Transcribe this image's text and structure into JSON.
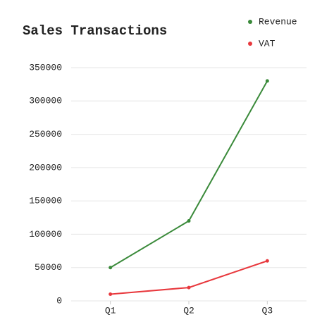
{
  "chart_data": {
    "type": "line",
    "title": "Sales Transactions",
    "categories": [
      "Q1",
      "Q2",
      "Q3"
    ],
    "series": [
      {
        "name": "Revenue",
        "color": "#3a8a3a",
        "values": [
          50000,
          120000,
          330000
        ]
      },
      {
        "name": "VAT",
        "color": "#e8383d",
        "values": [
          10000,
          20000,
          60000
        ]
      }
    ],
    "ylim": [
      0,
      350000
    ],
    "yticks": [
      0,
      50000,
      100000,
      150000,
      200000,
      250000,
      300000,
      350000
    ],
    "grid": true,
    "legend": "top-right"
  }
}
